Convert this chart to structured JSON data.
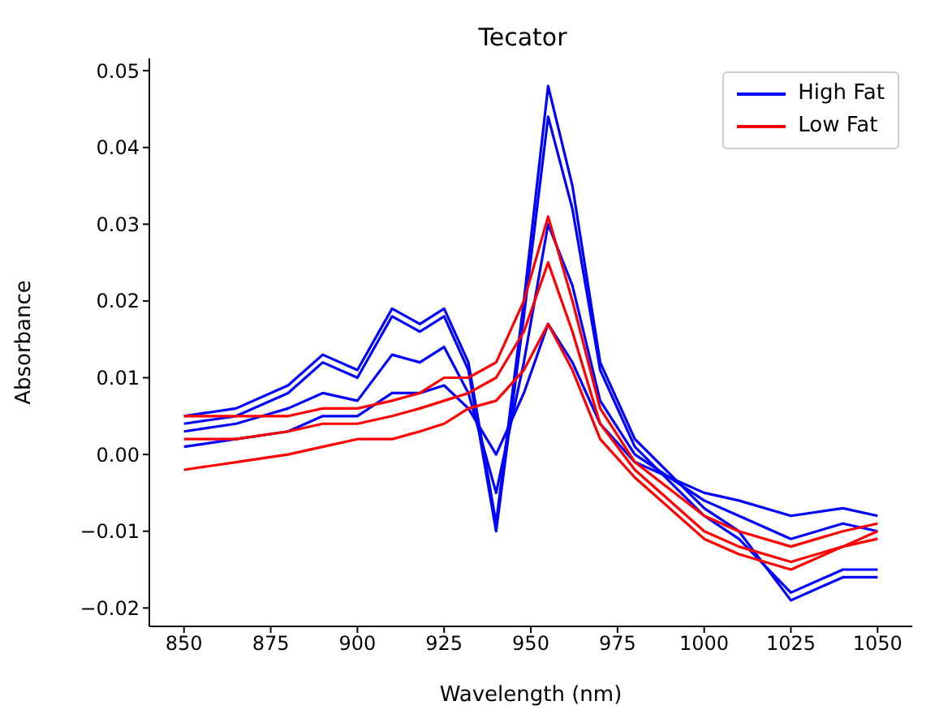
{
  "chart_data": {
    "type": "line",
    "title": "Tecator",
    "xlabel": "Wavelength (nm)",
    "ylabel": "Absorbance",
    "x": [
      850,
      865,
      880,
      890,
      900,
      910,
      918,
      925,
      932,
      940,
      948,
      955,
      962,
      970,
      980,
      1000,
      1010,
      1025,
      1040,
      1050
    ],
    "xlim": [
      840,
      1060
    ],
    "xticks": [
      850,
      875,
      900,
      925,
      950,
      975,
      1000,
      1025,
      1050
    ],
    "ylim": [
      -0.0224,
      0.0516
    ],
    "yticks": [
      {
        "value": -0.02,
        "label": "−0.02"
      },
      {
        "value": -0.01,
        "label": "−0.01"
      },
      {
        "value": 0,
        "label": "0.00"
      },
      {
        "value": 0.01,
        "label": "0.01"
      },
      {
        "value": 0.02,
        "label": "0.02"
      },
      {
        "value": 0.03,
        "label": "0.03"
      },
      {
        "value": 0.04,
        "label": "0.04"
      },
      {
        "value": 0.05,
        "label": "0.05"
      }
    ],
    "grid": false,
    "legend": "top right",
    "marker": "none",
    "line_style": "solid",
    "series": [
      {
        "name": "High Fat",
        "color": "#0000ff",
        "values": [
          0.005,
          0.006,
          0.009,
          0.013,
          0.011,
          0.019,
          0.017,
          0.019,
          0.012,
          -0.009,
          0.02,
          0.048,
          0.035,
          0.012,
          0.002,
          -0.007,
          -0.01,
          -0.019,
          -0.016,
          -0.016
        ]
      },
      {
        "color": "#0000ff",
        "values": [
          0.004,
          0.005,
          0.008,
          0.012,
          0.01,
          0.018,
          0.016,
          0.018,
          0.011,
          -0.01,
          0.018,
          0.044,
          0.032,
          0.011,
          0.001,
          -0.008,
          -0.011,
          -0.018,
          -0.015,
          -0.015
        ]
      },
      {
        "color": "#0000ff",
        "values": [
          0.003,
          0.004,
          0.006,
          0.008,
          0.007,
          0.013,
          0.012,
          0.014,
          0.008,
          -0.005,
          0.012,
          0.03,
          0.022,
          0.007,
          0,
          -0.006,
          -0.008,
          -0.011,
          -0.009,
          -0.01
        ]
      },
      {
        "color": "#0000ff",
        "values": [
          0.001,
          0.002,
          0.003,
          0.005,
          0.005,
          0.008,
          0.008,
          0.009,
          0.006,
          0,
          0.008,
          0.017,
          0.012,
          0.004,
          -0.001,
          -0.005,
          -0.006,
          -0.008,
          -0.007,
          -0.008
        ]
      },
      {
        "name": "Low Fat",
        "color": "#ff0000",
        "values": [
          0.005,
          0.005,
          0.005,
          0.006,
          0.006,
          0.007,
          0.008,
          0.01,
          0.01,
          0.012,
          0.02,
          0.031,
          0.02,
          0.006,
          -0.001,
          -0.008,
          -0.01,
          -0.012,
          -0.01,
          -0.009
        ]
      },
      {
        "color": "#ff0000",
        "values": [
          0.002,
          0.002,
          0.003,
          0.004,
          0.004,
          0.005,
          0.006,
          0.007,
          0.008,
          0.01,
          0.016,
          0.025,
          0.016,
          0.004,
          -0.002,
          -0.01,
          -0.012,
          -0.014,
          -0.012,
          -0.01
        ]
      },
      {
        "color": "#ff0000",
        "values": [
          -0.002,
          -0.001,
          0,
          0.001,
          0.002,
          0.002,
          0.003,
          0.004,
          0.006,
          0.007,
          0.011,
          0.017,
          0.011,
          0.002,
          -0.003,
          -0.011,
          -0.013,
          -0.015,
          -0.012,
          -0.011
        ]
      }
    ]
  }
}
